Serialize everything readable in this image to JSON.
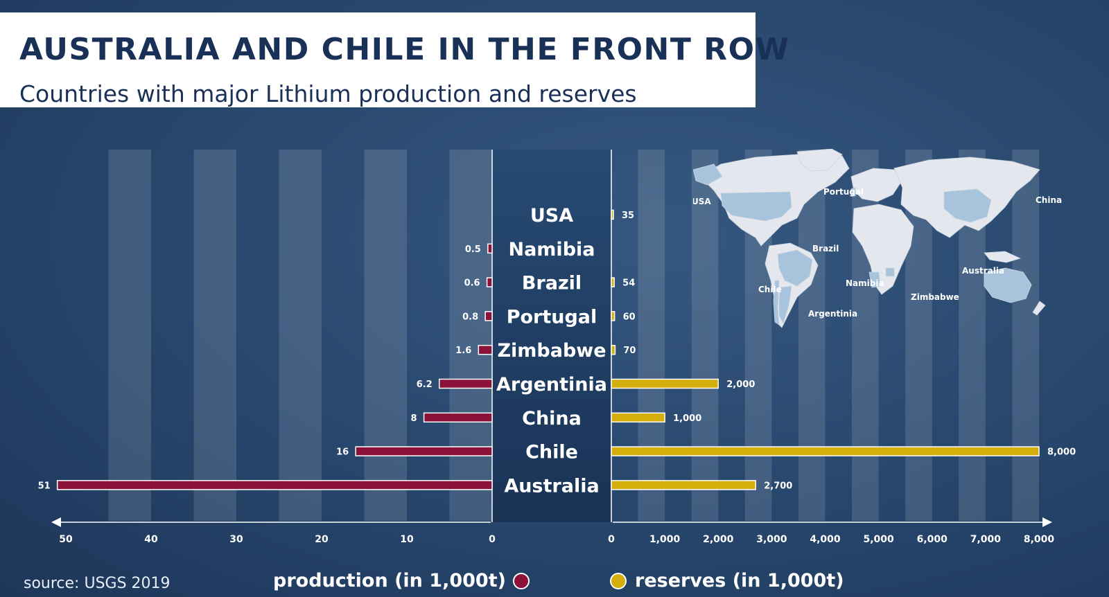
{
  "header": {
    "title": "AUSTRALIA AND CHILE IN THE FRONT ROW",
    "subtitle": "Countries with major Lithium production and reserves"
  },
  "source": "source: USGS 2019",
  "legend": {
    "production": "production (in 1,000t)",
    "reserves": "reserves (in 1,000t)"
  },
  "map_labels": [
    "USA",
    "Portugal",
    "China",
    "Brazil",
    "Chile",
    "Namibia",
    "Australia",
    "Zimbabwe",
    "Argentinia"
  ],
  "colors": {
    "production": "#8b1238",
    "reserves": "#d4ae0a",
    "highlight_country": "#a7c4dc",
    "land": "#e4e8ee"
  },
  "chart_data": {
    "type": "bar",
    "orientation": "horizontal-butterfly",
    "categories": [
      "USA",
      "Namibia",
      "Brazil",
      "Portugal",
      "Zimbabwe",
      "Argentinia",
      "China",
      "Chile",
      "Australia"
    ],
    "series": [
      {
        "name": "production (in 1,000t)",
        "side": "left",
        "values": [
          null,
          0.5,
          0.6,
          0.8,
          1.6,
          6.2,
          8,
          16,
          51
        ],
        "labels": [
          "",
          "0.5",
          "0.6",
          "0.8",
          "1.6",
          "6.2",
          "8",
          "16",
          "51"
        ]
      },
      {
        "name": "reserves (in 1,000t)",
        "side": "right",
        "values": [
          35,
          null,
          54,
          60,
          70,
          2000,
          1000,
          8000,
          2700
        ],
        "labels": [
          "35",
          "",
          "54",
          "60",
          "70",
          "2,000",
          "1,000",
          "8,000",
          "2,700"
        ]
      }
    ],
    "left_axis": {
      "range": [
        0,
        50
      ],
      "ticks": [
        "50",
        "40",
        "30",
        "20",
        "10",
        "0"
      ],
      "tick_values": [
        50,
        40,
        30,
        20,
        10,
        0
      ]
    },
    "right_axis": {
      "range": [
        0,
        8000
      ],
      "ticks": [
        "0",
        "1,000",
        "2,000",
        "3,000",
        "4,000",
        "5,000",
        "6,000",
        "7,000",
        "8,000"
      ],
      "tick_values": [
        0,
        1000,
        2000,
        3000,
        4000,
        5000,
        6000,
        7000,
        8000
      ]
    },
    "title": "AUSTRALIA AND CHILE IN THE FRONT ROW",
    "subtitle": "Countries with major Lithium production and reserves",
    "grid": true,
    "legend_position": "bottom"
  }
}
